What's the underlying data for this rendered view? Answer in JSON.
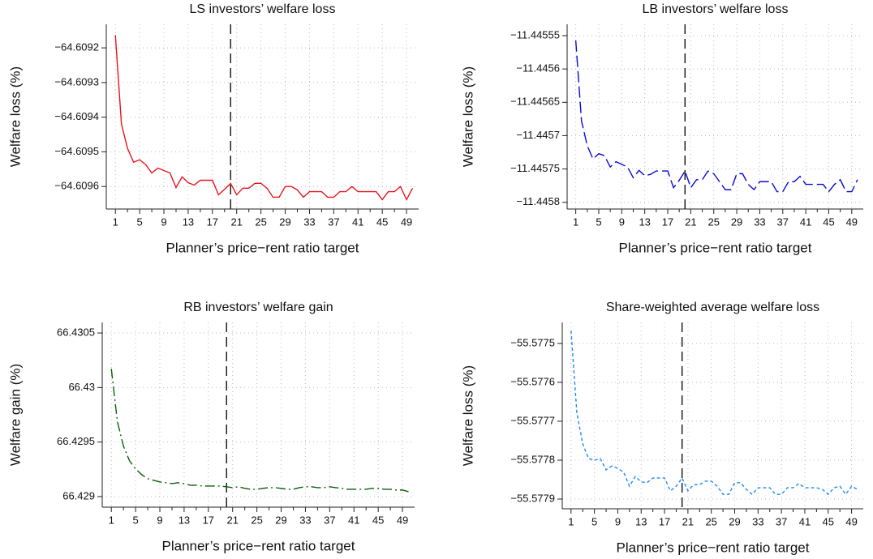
{
  "chart_data": [
    {
      "type": "line",
      "title": "LS investors’ welfare loss",
      "xlabel": "Planner’s price−rent ratio target",
      "ylabel": "Welfare loss (%)",
      "x": [
        1,
        2,
        3,
        4,
        5,
        6,
        7,
        8,
        9,
        10,
        11,
        12,
        13,
        14,
        15,
        16,
        17,
        18,
        19,
        20,
        21,
        22,
        23,
        24,
        25,
        26,
        27,
        28,
        29,
        30,
        31,
        32,
        33,
        34,
        35,
        36,
        37,
        38,
        39,
        40,
        41,
        42,
        43,
        44,
        45,
        46,
        47,
        48,
        49,
        50
      ],
      "values": [
        -64.609163,
        -64.60942,
        -64.60949,
        -64.60953,
        -64.609523,
        -64.609537,
        -64.609561,
        -64.609547,
        -64.609554,
        -64.609561,
        -64.609603,
        -64.609572,
        -64.609589,
        -64.609596,
        -64.609582,
        -64.609582,
        -64.609582,
        -64.609624,
        -64.609608,
        -64.609591,
        -64.609624,
        -64.609605,
        -64.609605,
        -64.609591,
        -64.609591,
        -64.609605,
        -64.609631,
        -64.609631,
        -64.6096,
        -64.6096,
        -64.60961,
        -64.609631,
        -64.609615,
        -64.609615,
        -64.609615,
        -64.609631,
        -64.609631,
        -64.609615,
        -64.609615,
        -64.6096,
        -64.609615,
        -64.609615,
        -64.609615,
        -64.609615,
        -64.609638,
        -64.609615,
        -64.609615,
        -64.6096,
        -64.609638,
        -64.609605
      ],
      "color": "#e8141c",
      "line_style": "solid",
      "reference_line": 20,
      "xlim": [
        -0.5,
        51
      ],
      "xticks": [
        1,
        5,
        9,
        13,
        17,
        21,
        25,
        29,
        33,
        37,
        41,
        45,
        49
      ],
      "xminorticks": [
        3,
        7,
        11,
        15,
        19,
        23,
        27,
        31,
        35,
        39,
        43,
        47
      ],
      "ylim": [
        -64.609665,
        -64.609132
      ],
      "yticks": [
        {
          "value": -64.6092,
          "label": "−64.6092"
        },
        {
          "value": -64.6093,
          "label": "−64.6093"
        },
        {
          "value": -64.6094,
          "label": "−64.6094"
        },
        {
          "value": -64.6095,
          "label": "−64.6095"
        },
        {
          "value": -64.6096,
          "label": "−64.6096"
        }
      ],
      "grid": true
    },
    {
      "type": "line",
      "title": "LB investors’ welfare loss",
      "xlabel": "Planner’s price−rent ratio target",
      "ylabel": "Welfare loss (%)",
      "x": [
        1,
        2,
        3,
        4,
        5,
        6,
        7,
        8,
        9,
        10,
        11,
        12,
        13,
        14,
        15,
        16,
        17,
        18,
        19,
        20,
        21,
        22,
        23,
        24,
        25,
        26,
        27,
        28,
        29,
        30,
        31,
        32,
        33,
        34,
        35,
        36,
        37,
        38,
        39,
        40,
        41,
        42,
        43,
        44,
        45,
        46,
        47,
        48,
        49,
        50
      ],
      "values": [
        -11.445557,
        -11.445678,
        -11.445715,
        -11.445735,
        -11.445727,
        -11.44573,
        -11.445747,
        -11.445739,
        -11.445743,
        -11.445747,
        -11.445763,
        -11.445752,
        -11.44576,
        -11.445758,
        -11.445753,
        -11.445753,
        -11.445753,
        -11.445778,
        -11.445767,
        -11.445753,
        -11.445778,
        -11.445766,
        -11.445766,
        -11.445753,
        -11.445757,
        -11.445769,
        -11.445781,
        -11.445781,
        -11.445757,
        -11.445757,
        -11.445773,
        -11.445781,
        -11.445769,
        -11.445769,
        -11.445769,
        -11.445784,
        -11.445784,
        -11.445769,
        -11.445769,
        -11.445761,
        -11.445773,
        -11.445773,
        -11.445773,
        -11.445773,
        -11.445784,
        -11.445773,
        -11.445766,
        -11.445784,
        -11.445784,
        -11.445766
      ],
      "color": "#0a0ad2",
      "line_style": "dashed",
      "reference_line": 20,
      "xlim": [
        -0.5,
        51
      ],
      "xticks": [
        1,
        5,
        9,
        13,
        17,
        21,
        25,
        29,
        33,
        37,
        41,
        45,
        49
      ],
      "xminorticks": [
        3,
        7,
        11,
        15,
        19,
        23,
        27,
        31,
        35,
        39,
        43,
        47
      ],
      "ylim": [
        -11.44581,
        -11.445533
      ],
      "yticks": [
        {
          "value": -11.44555,
          "label": "−11.44555"
        },
        {
          "value": -11.4456,
          "label": "−11.4456"
        },
        {
          "value": -11.44565,
          "label": "−11.44565"
        },
        {
          "value": -11.4457,
          "label": "−11.4457"
        },
        {
          "value": -11.44575,
          "label": "−11.44575"
        },
        {
          "value": -11.4458,
          "label": "−11.4458"
        }
      ],
      "grid": true
    },
    {
      "type": "line",
      "title": "RB investors’ welfare gain",
      "xlabel": "Planner’s price−rent ratio target",
      "ylabel": "Welfare gain (%)",
      "x": [
        1,
        2,
        3,
        4,
        5,
        6,
        7,
        8,
        9,
        10,
        11,
        12,
        13,
        14,
        15,
        16,
        17,
        18,
        19,
        20,
        21,
        22,
        23,
        24,
        25,
        26,
        27,
        28,
        29,
        30,
        31,
        32,
        33,
        34,
        35,
        36,
        37,
        38,
        39,
        40,
        41,
        42,
        43,
        44,
        45,
        46,
        47,
        48,
        49,
        50
      ],
      "values": [
        66.430172,
        66.429687,
        66.429463,
        66.429328,
        66.429254,
        66.429201,
        66.429164,
        66.429149,
        66.429134,
        66.429127,
        66.429119,
        66.429127,
        66.429119,
        66.429104,
        66.429104,
        66.429097,
        66.429097,
        66.429097,
        66.429097,
        66.42909,
        66.429082,
        66.42909,
        66.429075,
        66.429067,
        66.429067,
        66.429075,
        66.429082,
        66.429082,
        66.429075,
        66.429067,
        66.429067,
        66.429082,
        66.42909,
        66.42909,
        66.429082,
        66.429082,
        66.42909,
        66.429082,
        66.429075,
        66.429067,
        66.429067,
        66.429067,
        66.429067,
        66.429075,
        66.429075,
        66.429067,
        66.429067,
        66.42906,
        66.42906,
        66.429045
      ],
      "color": "#0b5e0b",
      "line_style": "dashdot",
      "reference_line": 20,
      "xlim": [
        -0.5,
        51
      ],
      "xticks": [
        1,
        5,
        9,
        13,
        17,
        21,
        25,
        29,
        33,
        37,
        41,
        45,
        49
      ],
      "xminorticks": [
        3,
        7,
        11,
        15,
        19,
        23,
        27,
        31,
        35,
        39,
        43,
        47
      ],
      "ylim": [
        66.428903,
        66.430597
      ],
      "yticks": [
        66.4305,
        66.43,
        66.4295,
        66.429
      ],
      "grid": true
    },
    {
      "type": "line",
      "title": "Share-weighted average welfare loss",
      "xlabel": "Planner’s price−rent ratio target",
      "ylabel": "Welfare loss (%)",
      "x": [
        1,
        2,
        3,
        4,
        5,
        6,
        7,
        8,
        9,
        10,
        11,
        12,
        13,
        14,
        15,
        16,
        17,
        18,
        19,
        20,
        21,
        22,
        23,
        24,
        25,
        26,
        27,
        28,
        29,
        30,
        31,
        32,
        33,
        34,
        35,
        36,
        37,
        38,
        39,
        40,
        41,
        42,
        43,
        44,
        45,
        46,
        47,
        48,
        49,
        50
      ],
      "values": [
        -55.577467,
        -55.577679,
        -55.577758,
        -55.577796,
        -55.5778,
        -55.577796,
        -55.577825,
        -55.577815,
        -55.577821,
        -55.577831,
        -55.577867,
        -55.577842,
        -55.577856,
        -55.577858,
        -55.577846,
        -55.577846,
        -55.577846,
        -55.577879,
        -55.577867,
        -55.577846,
        -55.577879,
        -55.577863,
        -55.577863,
        -55.577854,
        -55.577854,
        -55.577867,
        -55.577888,
        -55.577888,
        -55.577858,
        -55.577858,
        -55.577875,
        -55.577888,
        -55.577871,
        -55.577871,
        -55.577871,
        -55.577888,
        -55.577888,
        -55.577871,
        -55.577871,
        -55.57786,
        -55.577871,
        -55.577871,
        -55.577871,
        -55.577875,
        -55.577888,
        -55.577871,
        -55.577867,
        -55.577888,
        -55.577867,
        -55.577875
      ],
      "color": "#1e8cf0",
      "line_style": "dotted",
      "reference_line": 20,
      "xlim": [
        -0.5,
        51
      ],
      "xticks": [
        1,
        5,
        9,
        13,
        17,
        21,
        25,
        29,
        33,
        37,
        41,
        45,
        49
      ],
      "xminorticks": [
        3,
        7,
        11,
        15,
        19,
        23,
        27,
        31,
        35,
        39,
        43,
        47
      ],
      "ylim": [
        -55.577925,
        -55.577446
      ],
      "yticks": [
        {
          "value": -55.5775,
          "label": "−55.5775"
        },
        {
          "value": -55.5776,
          "label": "−55.5776"
        },
        {
          "value": -55.5777,
          "label": "−55.5777"
        },
        {
          "value": -55.5778,
          "label": "−55.5778"
        },
        {
          "value": -55.5779,
          "label": "−55.5779"
        }
      ],
      "grid": true
    }
  ]
}
